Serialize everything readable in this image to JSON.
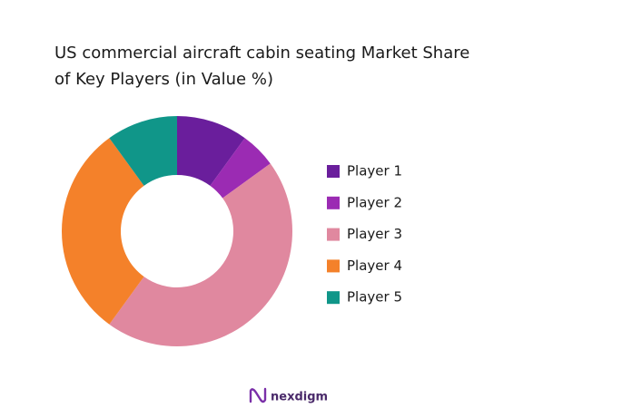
{
  "chart_data": {
    "type": "donut",
    "title": [
      "US commercial aircraft cabin seating Market Share",
      "of Key Players (in Value %)"
    ],
    "categories": [
      "Player 1",
      "Player 2",
      "Player 3",
      "Player 4",
      "Player 5"
    ],
    "values": [
      10,
      5,
      45,
      30,
      10
    ],
    "colors": [
      "#6a1e9c",
      "#9b2bb3",
      "#e0889f",
      "#f4812a",
      "#109689"
    ],
    "legend": "right"
  },
  "footer": {
    "logo": "nexdigm"
  }
}
